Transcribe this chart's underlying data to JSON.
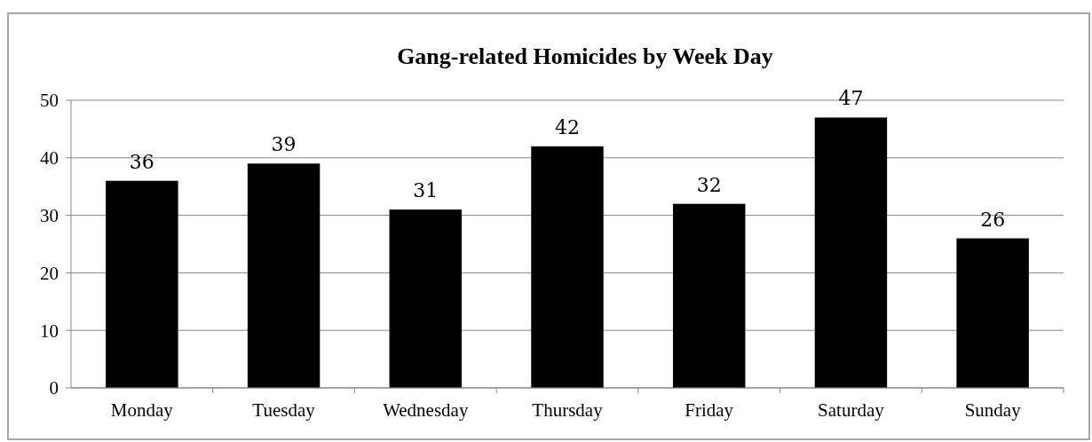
{
  "chart_data": {
    "type": "bar",
    "title": "Gang-related Homicides by Week Day",
    "categories": [
      "Monday",
      "Tuesday",
      "Wednesday",
      "Thursday",
      "Friday",
      "Saturday",
      "Sunday"
    ],
    "values": [
      36,
      39,
      31,
      42,
      32,
      47,
      26
    ],
    "color": "#000000",
    "ylim": [
      0,
      50
    ],
    "yticks": [
      0,
      10,
      20,
      30,
      40,
      50
    ],
    "grid": "y",
    "data_labels": true
  }
}
